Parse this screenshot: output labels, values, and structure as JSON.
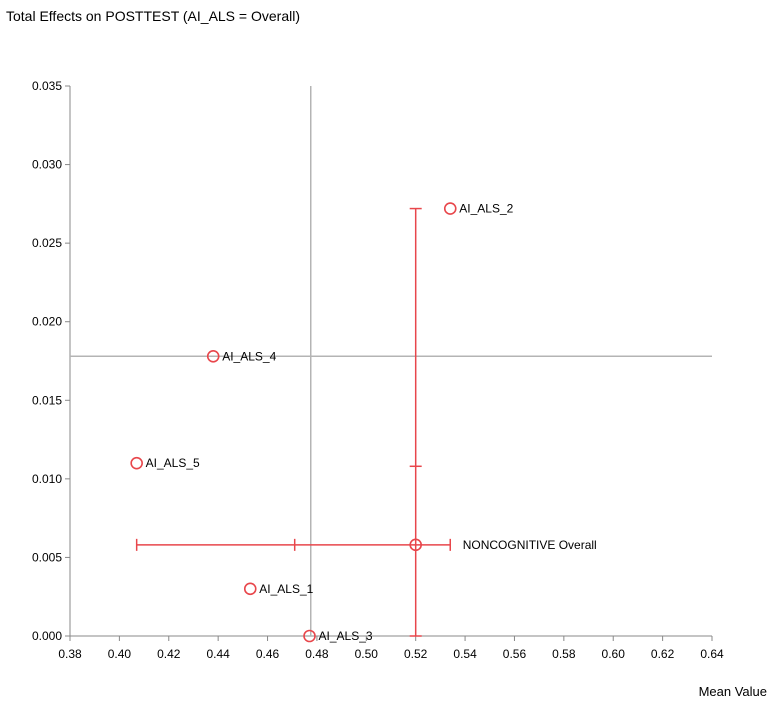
{
  "chart_data": {
    "type": "scatter",
    "title": "Total Effects on POSTTEST (AI_ALS = Overall)",
    "xlabel": "Mean Value",
    "ylabel": "",
    "xlim": [
      0.38,
      0.64
    ],
    "ylim": [
      0.0,
      0.035
    ],
    "x_ticks": [
      "0.38",
      "0.40",
      "0.42",
      "0.44",
      "0.46",
      "0.48",
      "0.50",
      "0.52",
      "0.54",
      "0.56",
      "0.58",
      "0.60",
      "0.62",
      "0.64"
    ],
    "y_ticks": [
      "0.000",
      "0.005",
      "0.010",
      "0.015",
      "0.020",
      "0.025",
      "0.030",
      "0.035"
    ],
    "reference_lines": {
      "x": 0.4775,
      "y": 0.0178
    },
    "points": [
      {
        "label": "AI_ALS_1",
        "x": 0.453,
        "y": 0.003
      },
      {
        "label": "AI_ALS_2",
        "x": 0.534,
        "y": 0.0272
      },
      {
        "label": "AI_ALS_3",
        "x": 0.477,
        "y": 0.0
      },
      {
        "label": "AI_ALS_4",
        "x": 0.438,
        "y": 0.0178
      },
      {
        "label": "AI_ALS_5",
        "x": 0.407,
        "y": 0.011
      }
    ],
    "overall": {
      "label": "NONCOGNITIVE Overall",
      "x": 0.52,
      "y": 0.0058,
      "x_whisker": [
        0.407,
        0.534
      ],
      "x_tick_marks": [
        0.471
      ],
      "y_whisker": [
        0.0,
        0.0272
      ],
      "y_tick_marks": [
        0.0108
      ]
    },
    "colors": {
      "marker": "#e8464b",
      "reference": "#b4b4b4",
      "axis": "#888888"
    },
    "grid": false
  }
}
